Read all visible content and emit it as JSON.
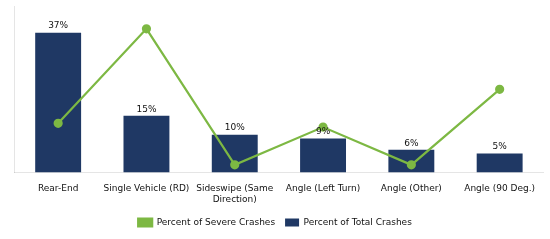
{
  "chart_data": {
    "type": "bar",
    "categories": [
      "Rear-End",
      "Single Vehicle (RD)",
      "Sideswipe (Same\nDirection)",
      "Angle (Left Turn)",
      "Angle (Other)",
      "Angle (90 Deg.)"
    ],
    "series": [
      {
        "name": "Percent of Total Crashes",
        "type": "bar",
        "color": "#1F3864",
        "values": [
          37,
          15,
          10,
          9,
          6,
          5
        ],
        "value_labels": [
          "37%",
          "15%",
          "10%",
          "9%",
          "6%",
          "5%"
        ],
        "data_labels": true
      },
      {
        "name": "Percent of Severe Crashes",
        "type": "line",
        "color": "#7DB843",
        "marker": "circle",
        "values": [
          13,
          38,
          2,
          12,
          2,
          22
        ]
      }
    ],
    "ylim": [
      0,
      44
    ],
    "grid": false,
    "legend": "bottom",
    "tick_labels": "x"
  }
}
